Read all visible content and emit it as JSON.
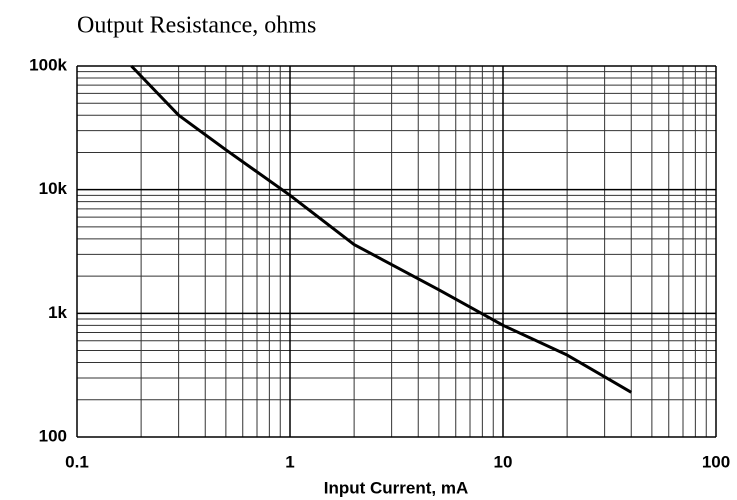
{
  "chart_data": {
    "type": "line",
    "title": "Output Resistance, ohms",
    "x_label": "Input Current, mA",
    "x": [
      0.18,
      0.3,
      0.5,
      1,
      2,
      5,
      10,
      20,
      40
    ],
    "series": [
      {
        "color": "#000000",
        "values": [
          100000,
          40000,
          21000,
          9000,
          3600,
          1550,
          800,
          460,
          230
        ]
      }
    ],
    "xlim": [
      0.1,
      100
    ],
    "xticks": [
      0.1,
      1,
      10,
      100
    ],
    "ylim": [
      100,
      100000
    ],
    "yticks": [
      100,
      {
        "value": 1000,
        "label": "1k"
      },
      {
        "value": 10000,
        "label": "10k"
      },
      {
        "value": 100000,
        "label": "100k"
      }
    ],
    "xscale": "log",
    "yscale": "log",
    "grid": true,
    "minor_grid": true
  }
}
